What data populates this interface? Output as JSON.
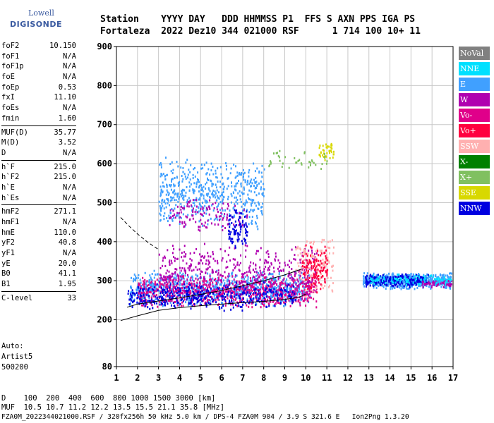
{
  "logo": {
    "line1": "Lowell",
    "line2": "DIGISONDE"
  },
  "header": {
    "line1": "Station    YYYY DAY   DDD HHMMSS P1  FFS S AXN PPS IGA PS",
    "line2": "Fortaleza  2022 Dez10 344 021000 RSF      1 714 100 10+ 11"
  },
  "params_groups": [
    [
      [
        "foF2",
        "10.150"
      ],
      [
        "foF1",
        "N/A"
      ],
      [
        "foF1p",
        "N/A"
      ],
      [
        "foE",
        "N/A"
      ],
      [
        "foEp",
        "0.53"
      ],
      [
        "fxI",
        "11.10"
      ],
      [
        "foEs",
        "N/A"
      ],
      [
        "fmin",
        "1.60"
      ]
    ],
    [
      [
        "MUF(D)",
        "35.77"
      ],
      [
        "M(D)",
        "3.52"
      ],
      [
        "D",
        "N/A"
      ]
    ],
    [
      [
        "h`F",
        "215.0"
      ],
      [
        "h`F2",
        "215.0"
      ],
      [
        "h`E",
        "N/A"
      ],
      [
        "h`Es",
        "N/A"
      ]
    ],
    [
      [
        "hmF2",
        "271.1"
      ],
      [
        "hmF1",
        "N/A"
      ],
      [
        "hmE",
        "110.0"
      ],
      [
        "yF2",
        "40.8"
      ],
      [
        "yF1",
        "N/A"
      ],
      [
        "yE",
        "20.0"
      ],
      [
        "B0",
        "41.1"
      ],
      [
        "B1",
        "1.95"
      ]
    ],
    [
      [
        "C-level",
        "33"
      ]
    ]
  ],
  "auto": {
    "line1": "Auto:",
    "line2": "Artist5",
    "line3": "500200"
  },
  "legend": [
    {
      "label": "NoVal",
      "color": "#808080"
    },
    {
      "label": "NNE",
      "color": "#00e0ff"
    },
    {
      "label": "E",
      "color": "#40a0ff"
    },
    {
      "label": "W",
      "color": "#b000b0"
    },
    {
      "label": "Vo-",
      "color": "#e0008a"
    },
    {
      "label": "Vo+",
      "color": "#ff0040"
    },
    {
      "label": "SSW",
      "color": "#ffb0b0"
    },
    {
      "label": "X-",
      "color": "#008000"
    },
    {
      "label": "X+",
      "color": "#80c060"
    },
    {
      "label": "SSE",
      "color": "#d8d800"
    },
    {
      "label": "NNW",
      "color": "#0000e0"
    }
  ],
  "footer": {
    "line1": "D    100  200  400  600  800 1000 1500 3000 [km]",
    "line2": "MUF  10.5 10.7 11.2 12.2 13.5 15.5 21.1 35.8 [MHz]",
    "line3": "FZA0M_2022344021000.RSF / 320fx256h 50 kHz 5.0 km / DPS-4 FZA0M 904 / 3.9 S 321.6 E   Ion2Png 1.3.20"
  },
  "chart_data": {
    "type": "scatter",
    "title": "",
    "xlabel": "",
    "ylabel": "",
    "xlim": [
      1,
      17
    ],
    "ylim": [
      80,
      900
    ],
    "x_ticks": [
      1,
      2,
      3,
      4,
      5,
      6,
      7,
      8,
      9,
      10,
      11,
      12,
      13,
      14,
      15,
      16,
      17
    ],
    "y_ticks": [
      80,
      200,
      300,
      400,
      500,
      600,
      700,
      800,
      900
    ],
    "grid": true,
    "curves": [
      {
        "name": "profile_solid",
        "style": "solid",
        "points": [
          [
            1.2,
            198
          ],
          [
            2,
            210
          ],
          [
            3,
            224
          ],
          [
            4,
            231
          ],
          [
            5,
            236
          ],
          [
            6,
            240
          ],
          [
            7,
            244
          ],
          [
            8,
            247
          ],
          [
            9,
            252
          ],
          [
            9.7,
            258
          ],
          [
            10.0,
            266
          ]
        ]
      },
      {
        "name": "profile_dashed",
        "style": "dashed",
        "points": [
          [
            1.2,
            462
          ],
          [
            1.6,
            440
          ],
          [
            2,
            420
          ],
          [
            2.5,
            398
          ],
          [
            3,
            380
          ]
        ]
      },
      {
        "name": "trace",
        "style": "solid",
        "points": [
          [
            1.5,
            232
          ],
          [
            2,
            240
          ],
          [
            3,
            248
          ],
          [
            4,
            256
          ],
          [
            5,
            265
          ],
          [
            6,
            275
          ],
          [
            7,
            287
          ],
          [
            8,
            300
          ],
          [
            9,
            315
          ],
          [
            9.8,
            330
          ]
        ]
      }
    ],
    "echo_regions": [
      {
        "color": "#40a0ff",
        "x": [
          1.6,
          10.2
        ],
        "y": [
          235,
          330
        ],
        "n": 900
      },
      {
        "color": "#e0008a",
        "x": [
          2.0,
          10.5
        ],
        "y": [
          230,
          320
        ],
        "n": 700
      },
      {
        "color": "#b000b0",
        "x": [
          3.0,
          10.5
        ],
        "y": [
          250,
          400
        ],
        "n": 450
      },
      {
        "color": "#0000e0",
        "x": [
          1.5,
          9.5
        ],
        "y": [
          225,
          300
        ],
        "n": 400
      },
      {
        "color": "#ffb0b0",
        "x": [
          9.5,
          11.3
        ],
        "y": [
          250,
          420
        ],
        "n": 150
      },
      {
        "color": "#ff0040",
        "x": [
          9.8,
          11.0
        ],
        "y": [
          270,
          400
        ],
        "n": 120
      },
      {
        "color": "#40a0ff",
        "x": [
          3.0,
          8.0
        ],
        "y": [
          430,
          620
        ],
        "n": 550
      },
      {
        "color": "#b000b0",
        "x": [
          3.5,
          7.2
        ],
        "y": [
          420,
          520
        ],
        "n": 120
      },
      {
        "color": "#0000e0",
        "x": [
          6.3,
          7.2
        ],
        "y": [
          380,
          490
        ],
        "n": 90
      },
      {
        "color": "#40a0ff",
        "x": [
          12.7,
          16.9
        ],
        "y": [
          280,
          325
        ],
        "n": 600
      },
      {
        "color": "#0000e0",
        "x": [
          12.8,
          15.8
        ],
        "y": [
          285,
          320
        ],
        "n": 220
      },
      {
        "color": "#b000b0",
        "x": [
          15.5,
          16.9
        ],
        "y": [
          285,
          305
        ],
        "n": 60
      },
      {
        "color": "#00e0ff",
        "x": [
          13.0,
          16.9
        ],
        "y": [
          290,
          320
        ],
        "n": 100
      },
      {
        "color": "#d8d800",
        "x": [
          10.6,
          11.3
        ],
        "y": [
          610,
          660
        ],
        "n": 40
      },
      {
        "color": "#80c060",
        "x": [
          8.0,
          11.0
        ],
        "y": [
          580,
          640
        ],
        "n": 40
      }
    ],
    "legend_position": "right"
  }
}
